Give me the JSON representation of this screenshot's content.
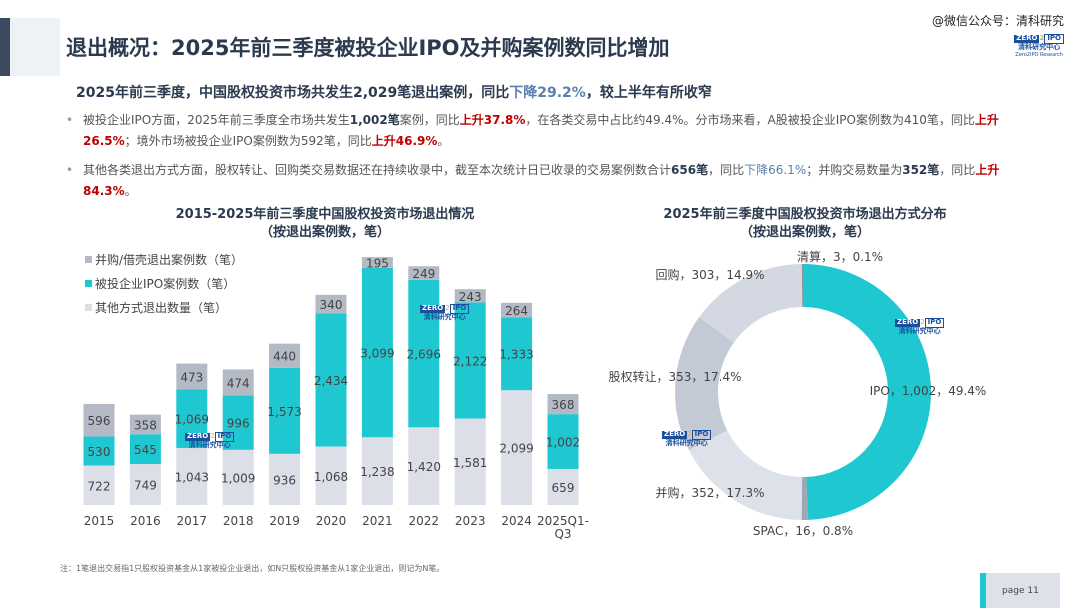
{
  "header": {
    "title": "退出概况：2025年前三季度被投企业IPO及并购案例数同比增加",
    "wechat": "@微信公众号：清科研究",
    "logo": {
      "zero": "ZERO",
      "two": "2",
      "ipo": "IPO",
      "cn": "清科研究中心",
      "en": "Zero2IPO Research"
    }
  },
  "headline": {
    "a": "2025年前三季度，中国股权投资市场共发生2,029笔退出案例，同比",
    "b": "下降29.2%",
    "c": "，较上半年有所收窄"
  },
  "bullets": [
    {
      "parts": [
        [
          "n",
          "被投企业IPO方面，2025年前三季度全市场共发生"
        ],
        [
          "b",
          "1,002笔"
        ],
        [
          "n",
          "案例，同比"
        ],
        [
          "r",
          "上升37.8%"
        ],
        [
          "n",
          "，在各类交易中占比约49.4%。分市场来看，A股被投企业IPO案例数为410笔，同比"
        ],
        [
          "r",
          "上升26.5%"
        ],
        [
          "n",
          "；境外市场被投企业IPO案例数为592笔，同比"
        ],
        [
          "r",
          "上升46.9%"
        ],
        [
          "n",
          "。"
        ]
      ]
    },
    {
      "parts": [
        [
          "n",
          "其他各类退出方式方面，股权转让、回购类交易数据还在持续收录中，截至本次统计日已收录的交易案例数合计"
        ],
        [
          "b",
          "656笔"
        ],
        [
          "n",
          "，同比"
        ],
        [
          "l",
          "下降66.1%"
        ],
        [
          "n",
          "；并购交易数量为"
        ],
        [
          "b",
          "352笔"
        ],
        [
          "n",
          "，同比"
        ],
        [
          "r",
          "上升84.3%"
        ],
        [
          "n",
          "。"
        ]
      ]
    }
  ],
  "chart_data": [
    {
      "type": "bar",
      "stacked": true,
      "title": "2015-2025年前三季度中国股权投资市场退出情况",
      "subtitle": "（按退出案例数，笔）",
      "categories": [
        "2015",
        "2016",
        "2017",
        "2018",
        "2019",
        "2020",
        "2021",
        "2022",
        "2023",
        "2024",
        "2025Q1-Q3"
      ],
      "legend_position": "top-left",
      "grid": false,
      "series": [
        {
          "name": "其他方式退出数量（笔）",
          "color": "#dcdfe7",
          "values": [
            722,
            749,
            1043,
            1009,
            936,
            1068,
            1238,
            1420,
            1581,
            2099,
            659
          ]
        },
        {
          "name": "被投企业IPO案例数（笔）",
          "color": "#1fc8d1",
          "values": [
            530,
            545,
            1069,
            996,
            1573,
            2434,
            3099,
            2696,
            2122,
            1333,
            1002
          ]
        },
        {
          "name": "并购/借壳退出案例数（笔）",
          "color": "#b4b9c6",
          "values": [
            596,
            358,
            473,
            474,
            440,
            340,
            195,
            249,
            243,
            264,
            368
          ]
        }
      ],
      "legend_order": [
        2,
        1,
        0
      ]
    },
    {
      "type": "pie",
      "donut": true,
      "title": "2025年前三季度中国股权投资市场退出方式分布",
      "subtitle": "（按退出案例数，笔）",
      "slices": [
        {
          "name": "IPO",
          "value": 1002,
          "pct": "49.4%",
          "label": "IPO，1,002，49.4%",
          "color": "#1fc8d1"
        },
        {
          "name": "SPAC",
          "value": 16,
          "pct": "0.8%",
          "label": "SPAC，16，0.8%",
          "color": "#a0a6b2"
        },
        {
          "name": "并购",
          "value": 352,
          "pct": "17.3%",
          "label": "并购，352，17.3%",
          "color": "#dde1ea"
        },
        {
          "name": "股权转让",
          "value": 353,
          "pct": "17.4%",
          "label": "股权转让，353，17.4%",
          "color": "#c3c9d5"
        },
        {
          "name": "回购",
          "value": 303,
          "pct": "14.9%",
          "label": "回购，303，14.9%",
          "color": "#d3d8e2"
        },
        {
          "name": "清算",
          "value": 3,
          "pct": "0.1%",
          "label": "清算，3，0.1%",
          "color": "#8f96a3"
        }
      ]
    }
  ],
  "footer": {
    "note": "注：1笔退出交易指1只股权投资基金从1家被投企业退出，如N只股权投资基金从1家企业退出，则记为N笔。",
    "page": "page  11"
  }
}
